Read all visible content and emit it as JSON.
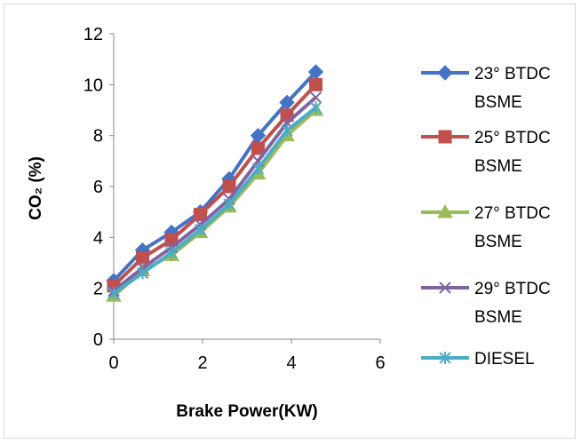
{
  "chart_data": {
    "type": "line",
    "xlabel": "Brake Power(KW)",
    "ylabel": "CO₂ (%)",
    "xlim": [
      0,
      6
    ],
    "ylim": [
      0,
      12
    ],
    "xticks": [
      "0",
      "2",
      "4",
      "6"
    ],
    "yticks": [
      "0",
      "2",
      "4",
      "6",
      "8",
      "10",
      "12"
    ],
    "grid": false,
    "legend_position": "right",
    "x": [
      0,
      0.65,
      1.3,
      1.95,
      2.6,
      3.25,
      3.9,
      4.55
    ],
    "series": [
      {
        "name": "23° BTDC BSME",
        "name_lines": [
          "23° BTDC",
          "BSME"
        ],
        "color": "#4472C4",
        "marker": "diamond",
        "values": [
          2.3,
          3.5,
          4.2,
          5.0,
          6.3,
          8.0,
          9.3,
          10.5
        ]
      },
      {
        "name": "25° BTDC BSME",
        "name_lines": [
          "25° BTDC",
          "BSME"
        ],
        "color": "#C0504D",
        "marker": "square",
        "values": [
          2.1,
          3.2,
          3.9,
          4.9,
          6.0,
          7.5,
          8.8,
          10.0
        ]
      },
      {
        "name": "27° BTDC BSME",
        "name_lines": [
          "27° BTDC",
          "BSME"
        ],
        "color": "#9BBB59",
        "marker": "triangle",
        "values": [
          1.7,
          2.7,
          3.3,
          4.2,
          5.2,
          6.5,
          8.0,
          9.0
        ]
      },
      {
        "name": "29° BTDC BSME",
        "name_lines": [
          "29° BTDC",
          "BSME"
        ],
        "color": "#8064A2",
        "marker": "x",
        "values": [
          1.9,
          2.8,
          3.6,
          4.5,
          5.5,
          7.0,
          8.5,
          9.5
        ]
      },
      {
        "name": "DIESEL",
        "name_lines": [
          "DIESEL"
        ],
        "color": "#4BACC6",
        "marker": "star",
        "values": [
          1.8,
          2.6,
          3.4,
          4.3,
          5.3,
          6.7,
          8.2,
          9.1
        ]
      }
    ]
  }
}
